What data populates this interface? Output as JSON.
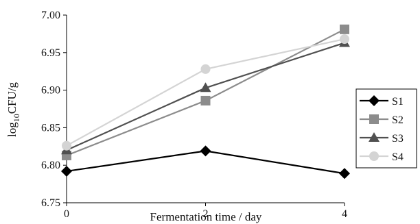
{
  "chart_data": {
    "type": "line",
    "title": "",
    "x": [
      0,
      2,
      4
    ],
    "xlabel": "Fermentation time / day",
    "ylabel": {
      "prefix": "log",
      "sub": "10",
      "suffix": "CFU/g"
    },
    "xlim": [
      0,
      4
    ],
    "ylim": [
      6.75,
      7.0
    ],
    "x_ticks": [
      "0",
      "2",
      "4"
    ],
    "y_ticks": [
      "6.75",
      "6.80",
      "6.85",
      "6.90",
      "6.95",
      "7.00"
    ],
    "grid": false,
    "legend_position": "right",
    "series": [
      {
        "name": "S1",
        "values": [
          6.792,
          6.819,
          6.789
        ],
        "color": "#000000",
        "marker": "diamond"
      },
      {
        "name": "S2",
        "values": [
          6.813,
          6.886,
          6.981
        ],
        "color": "#8c8c8c",
        "marker": "square"
      },
      {
        "name": "S3",
        "values": [
          6.82,
          6.903,
          6.963
        ],
        "color": "#505050",
        "marker": "triangle"
      },
      {
        "name": "S4",
        "values": [
          6.826,
          6.928,
          6.968
        ],
        "color": "#d4d4d4",
        "marker": "circle"
      }
    ]
  }
}
